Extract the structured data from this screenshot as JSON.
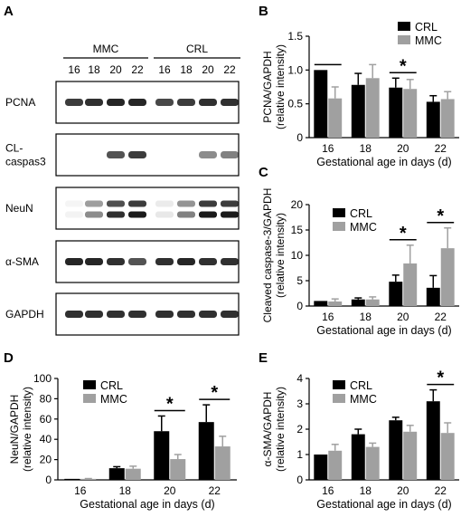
{
  "panel_letters": [
    "A",
    "B",
    "C",
    "D",
    "E"
  ],
  "colors": {
    "crl": "#000000",
    "mmc": "#a0a0a0",
    "blot_bg": "#ffffff",
    "band": "#1a1a1a"
  },
  "western_blot": {
    "groups": [
      {
        "name": "MMC",
        "lanes": [
          "16",
          "18",
          "20",
          "22"
        ]
      },
      {
        "name": "CRL",
        "lanes": [
          "16",
          "18",
          "20",
          "22"
        ]
      }
    ],
    "rows": [
      {
        "label": "PCNA",
        "intensity": [
          0.85,
          0.9,
          0.95,
          0.95,
          0.8,
          0.85,
          0.9,
          0.9
        ]
      },
      {
        "label": "CL-\ncaspas3",
        "intensity": [
          0.0,
          0.0,
          0.75,
          0.85,
          0.0,
          0.0,
          0.5,
          0.55
        ]
      },
      {
        "label": "NeuN",
        "intensity": [
          0.05,
          0.5,
          0.9,
          1.0,
          0.1,
          0.55,
          1.0,
          1.0
        ]
      },
      {
        "label": "α-SMA",
        "intensity": [
          0.95,
          0.95,
          0.9,
          0.75,
          0.9,
          0.95,
          0.9,
          0.9
        ]
      },
      {
        "label": "GAPDH",
        "intensity": [
          0.9,
          0.9,
          0.9,
          0.9,
          0.9,
          0.9,
          0.9,
          0.9
        ]
      }
    ]
  },
  "chart_data": [
    {
      "panel": "B",
      "type": "bar",
      "categories": [
        "16",
        "18",
        "20",
        "22"
      ],
      "series": [
        {
          "name": "CRL",
          "values": [
            1.0,
            0.78,
            0.74,
            0.53
          ],
          "errors": [
            0.0,
            0.17,
            0.14,
            0.09
          ]
        },
        {
          "name": "MMC",
          "values": [
            0.58,
            0.88,
            0.72,
            0.57
          ],
          "errors": [
            0.17,
            0.2,
            0.14,
            0.11
          ]
        }
      ],
      "xlabel": "Gestational age in days (d)",
      "ylabel": [
        "PCNA/GAPDH",
        "(relative intensity)"
      ],
      "ylim": [
        0,
        1.5
      ],
      "yticks": [
        0,
        0.5,
        1.0,
        1.5
      ],
      "yticklabels": [
        "0",
        "0.5",
        "1.0",
        "1.5"
      ],
      "legend": "top-right",
      "significance": [
        {
          "category": 0,
          "star": false
        },
        {
          "category": 2,
          "star": true
        }
      ]
    },
    {
      "panel": "C",
      "type": "bar",
      "categories": [
        "16",
        "18",
        "20",
        "22"
      ],
      "series": [
        {
          "name": "CRL",
          "values": [
            1.0,
            1.3,
            4.8,
            3.6
          ],
          "errors": [
            0.0,
            0.3,
            1.3,
            2.4
          ]
        },
        {
          "name": "MMC",
          "values": [
            0.9,
            1.3,
            8.4,
            11.4
          ],
          "errors": [
            0.5,
            0.5,
            3.6,
            4.0
          ]
        }
      ],
      "xlabel": "Gestational age in days (d)",
      "ylabel": [
        "Cleaved caspase-3/GAPDH",
        "(relative intensity)"
      ],
      "ylim": [
        0,
        20
      ],
      "yticks": [
        0,
        5,
        10,
        15,
        20
      ],
      "yticklabels": [
        "0",
        "5",
        "10",
        "15",
        "20"
      ],
      "legend": "top-left",
      "significance": [
        {
          "category": 2,
          "star": true
        },
        {
          "category": 3,
          "star": true
        }
      ]
    },
    {
      "panel": "D",
      "type": "bar",
      "categories": [
        "16",
        "18",
        "20",
        "22"
      ],
      "series": [
        {
          "name": "CRL",
          "values": [
            1.0,
            11.5,
            48.0,
            57.0
          ],
          "errors": [
            0.0,
            1.5,
            15.0,
            17.0
          ]
        },
        {
          "name": "MMC",
          "values": [
            1.0,
            11.0,
            20.5,
            33.0
          ],
          "errors": [
            0.3,
            2.5,
            4.5,
            10.0
          ]
        }
      ],
      "xlabel": "Gestational age in days (d)",
      "ylabel": [
        "NeuN/GAPDH",
        "(relative intensity)"
      ],
      "ylim": [
        0,
        100
      ],
      "yticks": [
        0,
        20,
        40,
        60,
        80,
        100
      ],
      "yticklabels": [
        "0",
        "20",
        "40",
        "60",
        "80",
        "100"
      ],
      "legend": "top-left",
      "significance": [
        {
          "category": 2,
          "star": true
        },
        {
          "category": 3,
          "star": true
        }
      ]
    },
    {
      "panel": "E",
      "type": "bar",
      "categories": [
        "16",
        "18",
        "20",
        "22"
      ],
      "series": [
        {
          "name": "CRL",
          "values": [
            1.0,
            1.8,
            2.35,
            3.1
          ],
          "errors": [
            0.0,
            0.2,
            0.12,
            0.45
          ]
        },
        {
          "name": "MMC",
          "values": [
            1.15,
            1.3,
            1.9,
            1.85
          ],
          "errors": [
            0.25,
            0.15,
            0.25,
            0.4
          ]
        }
      ],
      "xlabel": "Gestational age in days (d)",
      "ylabel": [
        "α-SMA/GAPDH",
        "(relative intensity)"
      ],
      "ylim": [
        0,
        4
      ],
      "yticks": [
        0,
        1,
        2,
        3,
        4
      ],
      "yticklabels": [
        "0",
        "1",
        "2",
        "3",
        "4"
      ],
      "legend": "top-left",
      "significance": [
        {
          "category": 3,
          "star": true
        }
      ]
    }
  ]
}
